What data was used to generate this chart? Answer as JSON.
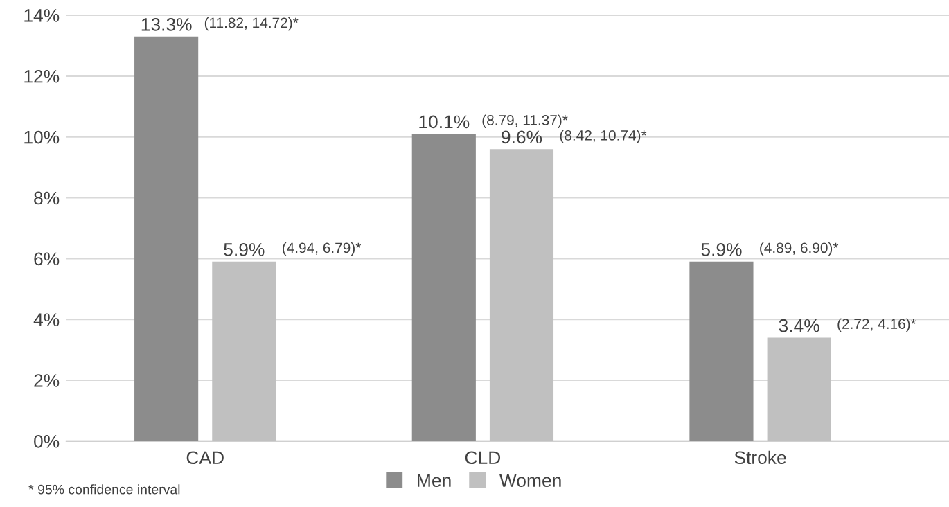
{
  "chart_data": {
    "type": "bar",
    "categories": [
      "CAD",
      "CLD",
      "Stroke"
    ],
    "series": [
      {
        "name": "Men",
        "color": "#8c8c8c",
        "values": [
          13.3,
          10.1,
          5.9
        ],
        "value_labels": [
          "13.3%",
          "10.1%",
          "5.9%"
        ]
      },
      {
        "name": "Women",
        "color": "#c0c0c0",
        "values": [
          5.9,
          9.6,
          3.4
        ],
        "value_labels": [
          "5.9%",
          "9.6%",
          "3.4%"
        ]
      }
    ],
    "ylim": [
      0,
      14
    ],
    "yticks": [
      {
        "value": 0,
        "label": "0%"
      },
      {
        "value": 2,
        "label": "2%"
      },
      {
        "value": 4,
        "label": "4%"
      },
      {
        "value": 6,
        "label": "6%"
      },
      {
        "value": 8,
        "label": "8%"
      },
      {
        "value": 10,
        "label": "10%"
      },
      {
        "value": 12,
        "label": "12%"
      },
      {
        "value": 14,
        "label": "14%"
      }
    ],
    "grid": "y",
    "legend": "bottom",
    "annotations": [
      "(11.82, 14.72)*",
      "(4.94, 6.79)*",
      "(8.79, 11.37)*",
      "(8.42, 10.74)*",
      "(4.89, 6.90)*",
      "(2.72, 4.16)*",
      "* 95% confidence interval"
    ]
  }
}
